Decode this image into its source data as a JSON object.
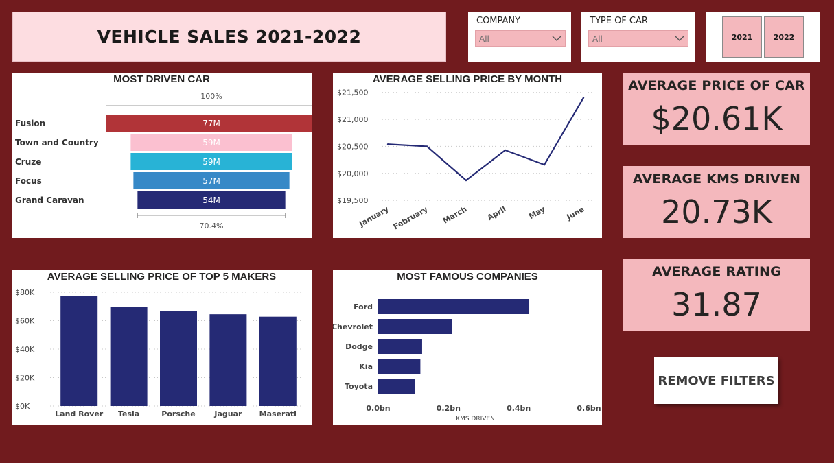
{
  "header": {
    "title": "VEHICLE SALES 2021-2022"
  },
  "slicers": {
    "company": {
      "label": "COMPANY",
      "value": "All"
    },
    "car_type": {
      "label": "TYPE OF CAR",
      "value": "All"
    },
    "years": [
      "2021",
      "2022"
    ]
  },
  "kpis": {
    "avg_price": {
      "label": "AVERAGE PRICE OF CAR",
      "value": "$20.61K"
    },
    "avg_kms": {
      "label": "AVERAGE KMS DRIVEN",
      "value": "20.73K"
    },
    "avg_rating": {
      "label": "AVERAGE RATING",
      "value": "31.87"
    }
  },
  "buttons": {
    "remove_filters": "REMOVE FILTERS"
  },
  "colors": {
    "background": "#711b1e",
    "navy": "#252a75",
    "kpi_pink": "#f4b8bd",
    "title_pink": "#fddde1"
  },
  "chart_data": [
    {
      "id": "funnel",
      "type": "bar",
      "title": "MOST DRIVEN CAR",
      "categories": [
        "Fusion",
        "Town and Country",
        "Cruze",
        "Focus",
        "Grand Caravan"
      ],
      "values": [
        77,
        59,
        59,
        57,
        54
      ],
      "value_labels": [
        "77M",
        "59M",
        "59M",
        "57M",
        "54M"
      ],
      "colors": [
        "#b13438",
        "#fbc0d0",
        "#28b3d6",
        "#3789c7",
        "#252a75"
      ],
      "top_label": "100%",
      "bottom_label": "70.4%"
    },
    {
      "id": "line",
      "type": "line",
      "title": "AVERAGE SELLING PRICE BY MONTH",
      "categories": [
        "January",
        "February",
        "March",
        "April",
        "May",
        "June"
      ],
      "values": [
        20540,
        20500,
        19870,
        20430,
        20160,
        21400
      ],
      "yticks": [
        19500,
        20000,
        20500,
        21000,
        21500
      ],
      "ytick_labels": [
        "$19,500",
        "$20,000",
        "$20,500",
        "$21,000",
        "$21,500"
      ],
      "ylim": [
        19400,
        21560
      ]
    },
    {
      "id": "makers",
      "type": "bar",
      "title": "AVERAGE SELLING PRICE OF TOP 5 MAKERS",
      "categories": [
        "Land Rover",
        "Tesla",
        "Porsche",
        "Jaguar",
        "Maserati"
      ],
      "values": [
        77500,
        69500,
        66800,
        64500,
        62800
      ],
      "yticks": [
        0,
        20000,
        40000,
        60000,
        80000
      ],
      "ytick_labels": [
        "$0K",
        "$20K",
        "$40K",
        "$60K",
        "$80K"
      ],
      "ylim": [
        0,
        80000
      ]
    },
    {
      "id": "companies",
      "type": "bar",
      "orientation": "horizontal",
      "title": "MOST FAMOUS COMPANIES",
      "categories": [
        "Ford",
        "Chevrolet",
        "Dodge",
        "Kia",
        "Toyota"
      ],
      "values": [
        0.43,
        0.21,
        0.125,
        0.12,
        0.105
      ],
      "xticks": [
        0,
        0.2,
        0.4,
        0.6
      ],
      "xtick_labels": [
        "0.0bn",
        "0.2bn",
        "0.4bn",
        "0.6bn"
      ],
      "xlabel": "KMS DRIVEN",
      "xlim": [
        0,
        0.6
      ]
    }
  ]
}
